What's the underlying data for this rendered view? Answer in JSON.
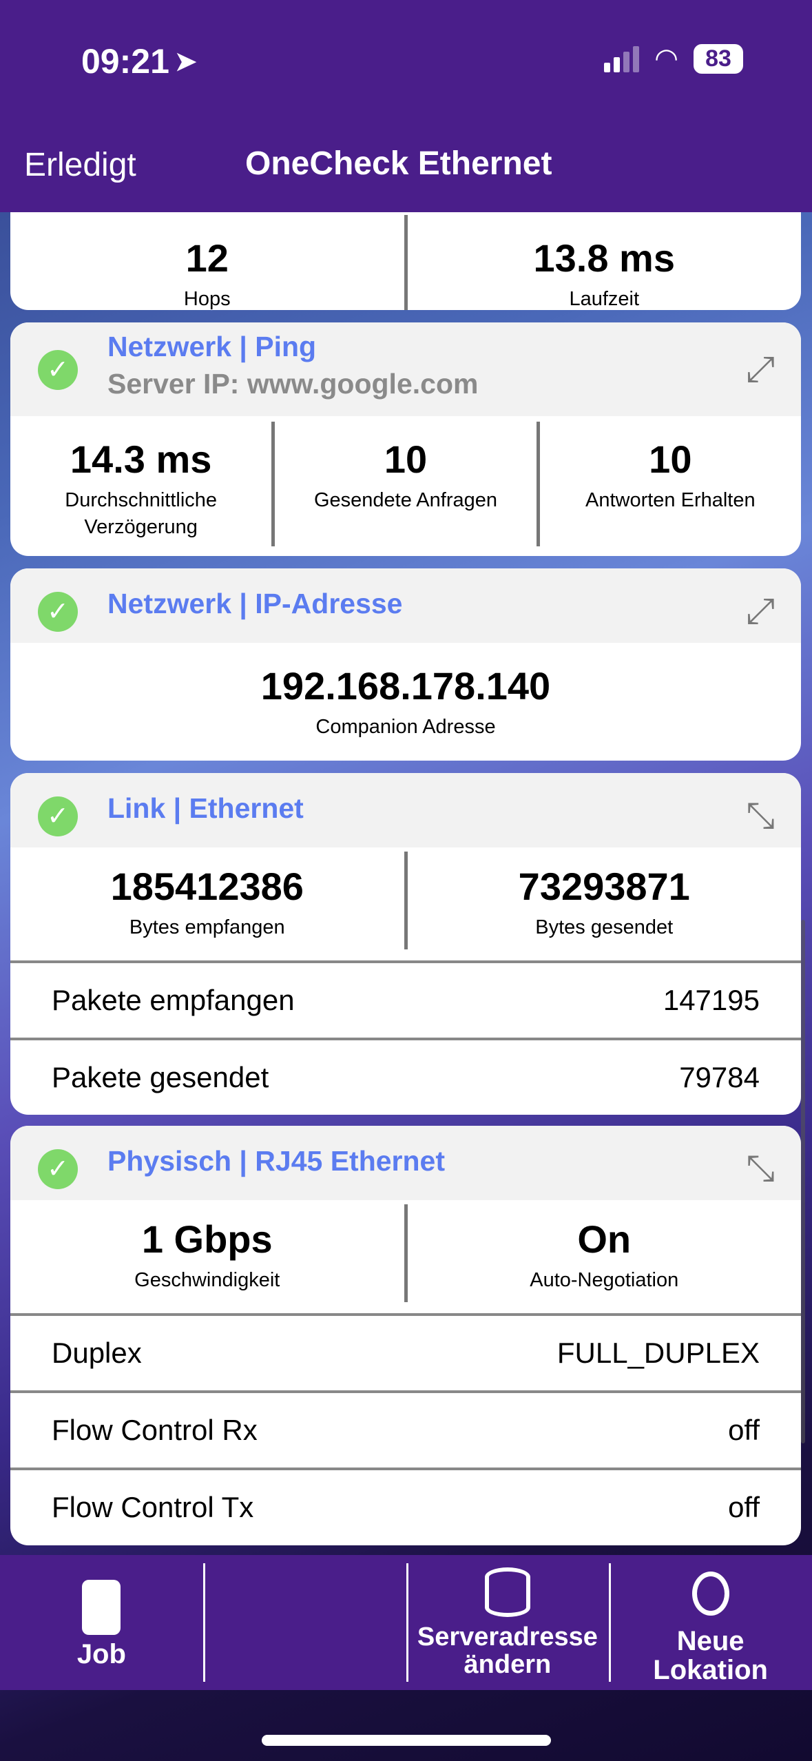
{
  "status": {
    "time": "09:21",
    "battery": "83"
  },
  "nav": {
    "done": "Erledigt",
    "title": "OneCheck Ethernet"
  },
  "trace": {
    "stats": [
      {
        "value": "12",
        "label": "Hops"
      },
      {
        "value": "13.8 ms",
        "label": "Laufzeit"
      }
    ]
  },
  "ping": {
    "title": "Netzwerk | Ping",
    "subtitle": "Server IP: www.google.com",
    "stats": [
      {
        "value": "14.3 ms",
        "label": "Durchschnittliche Verzögerung"
      },
      {
        "value": "10",
        "label": "Gesendete Anfragen"
      },
      {
        "value": "10",
        "label": "Antworten Erhalten"
      }
    ]
  },
  "ip": {
    "title": "Netzwerk | IP-Adresse",
    "value": "192.168.178.140",
    "label": "Companion Adresse"
  },
  "link": {
    "title": "Link | Ethernet",
    "stats": [
      {
        "value": "185412386",
        "label": "Bytes empfangen"
      },
      {
        "value": "73293871",
        "label": "Bytes gesendet"
      }
    ],
    "rows": [
      {
        "label": "Pakete empfangen",
        "value": "147195"
      },
      {
        "label": "Pakete gesendet",
        "value": "79784"
      }
    ]
  },
  "phys": {
    "title": "Physisch | RJ45 Ethernet",
    "stats": [
      {
        "value": "1 Gbps",
        "label": "Geschwindigkeit"
      },
      {
        "value": "On",
        "label": "Auto-Negotiation"
      }
    ],
    "rows": [
      {
        "label": "Duplex",
        "value": "FULL_DUPLEX"
      },
      {
        "label": "Flow Control Rx",
        "value": "off"
      },
      {
        "label": "Flow Control Tx",
        "value": "off"
      }
    ]
  },
  "bottom": {
    "job": "Job",
    "server": "Serveradresse ändern",
    "location": "Neue Lokation"
  },
  "colors": {
    "brand": "#4a1e8a",
    "accent": "#5b7cf0",
    "success": "#7fd86a"
  }
}
